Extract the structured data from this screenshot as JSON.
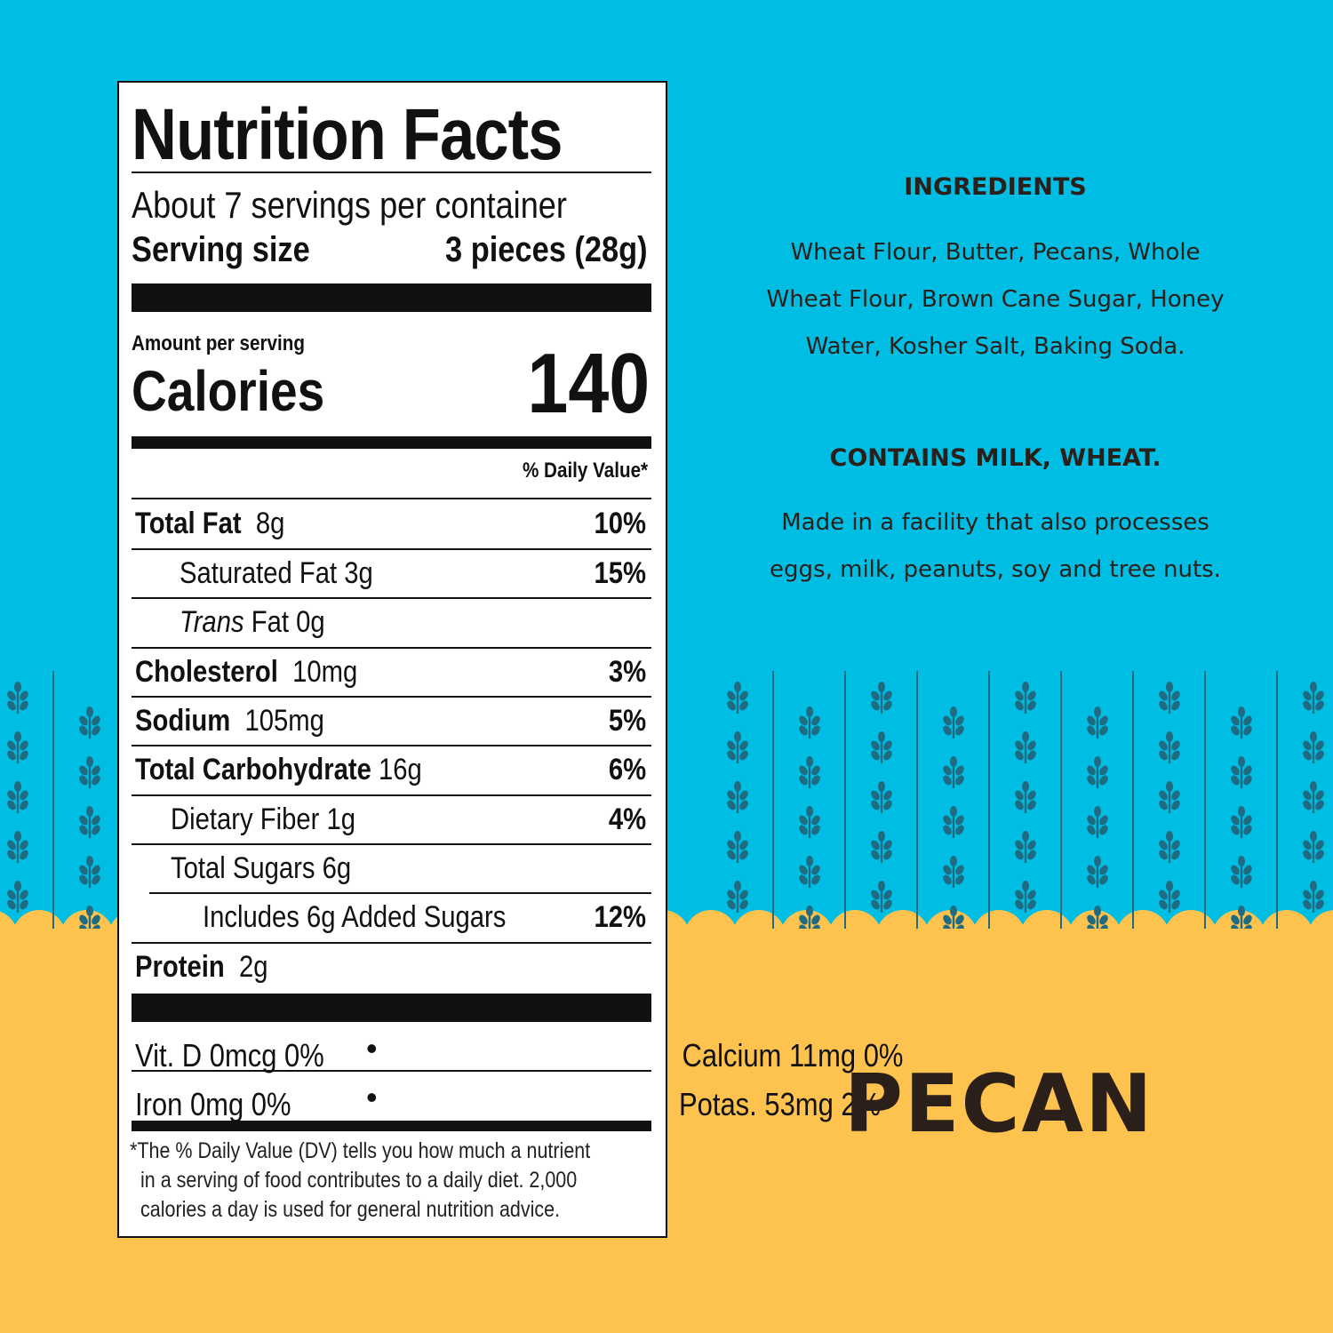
{
  "colors": {
    "background_blue": "#00bde3",
    "background_yellow": "#fec24e",
    "text_brown": "#2b1f19",
    "wheat_icon": "#1e6b82"
  },
  "label": {
    "title": "Nutrition Facts",
    "servings_per_container": "About 7 servings per container",
    "serving_size_label": "Serving size",
    "serving_size_value": "3 pieces (28g)",
    "amount_per_serving": "Amount per serving",
    "calories_label": "Calories",
    "calories_value": "140",
    "daily_value_header": "% Daily Value*",
    "nutrients": [
      {
        "name": "Total Fat",
        "amount": "8g",
        "dv": "10%"
      },
      {
        "name": "Saturated Fat 3g",
        "dv": "15%"
      },
      {
        "name_italic": "Trans",
        "name": "Fat 0g"
      },
      {
        "name": "Cholesterol",
        "amount": "10mg",
        "dv": "3%"
      },
      {
        "name": "Sodium",
        "amount": "105mg",
        "dv": "5%"
      },
      {
        "name": "Total Carbohydrate",
        "amount": "16g",
        "dv": "6%"
      },
      {
        "name": "Dietary Fiber 1g",
        "dv": "4%"
      },
      {
        "name": "Total Sugars 6g"
      },
      {
        "name": "Includes 6g Added Sugars",
        "dv": "12%"
      },
      {
        "name": "Protein",
        "amount": "2g"
      }
    ],
    "vitamins": [
      {
        "left": "Vit. D 0mcg 0%",
        "right": "Calcium 11mg 0%"
      },
      {
        "left": "Iron 0mg 0%",
        "right": "Potas. 53mg 2%"
      }
    ],
    "bullet": "•",
    "footnote": [
      "*The % Daily Value (DV) tells you how much a nutrient",
      "in a serving of food contributes to a daily diet. 2,000",
      "calories a day is used for general nutrition advice."
    ]
  },
  "ingredients": {
    "title": "INGREDIENTS",
    "lines": [
      "Wheat Flour, Butter, Pecans, Whole",
      "Wheat Flour, Brown Cane Sugar, Honey",
      "Water, Kosher Salt, Baking Soda."
    ]
  },
  "allergens": {
    "contains": "CONTAINS MILK, WHEAT.",
    "facility_lines": [
      "Made in a facility that also processes",
      "eggs, milk, peanuts, soy and tree nuts."
    ]
  },
  "product_name": "PECAN"
}
